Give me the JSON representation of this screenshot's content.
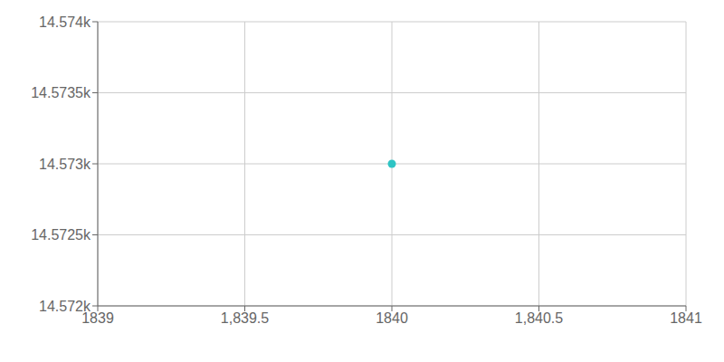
{
  "chart_data": {
    "type": "scatter",
    "x": [
      1840
    ],
    "values": [
      14573
    ],
    "color": "#2ec4c4",
    "xlim": [
      1839,
      1841
    ],
    "ylim": [
      14572,
      14574
    ],
    "xticks": [
      1839,
      {
        "value": 1839.5,
        "label": "1,839.5"
      },
      1840,
      {
        "value": 1840.5,
        "label": "1,840.5"
      },
      1841
    ],
    "yticks": [
      {
        "value": 14572,
        "label": "14.572k"
      },
      {
        "value": 14572.5,
        "label": "14.5725k"
      },
      {
        "value": 14573,
        "label": "14.573k"
      },
      {
        "value": 14573.5,
        "label": "14.5735k"
      },
      {
        "value": 14574,
        "label": "14.574k"
      }
    ],
    "grid": true
  }
}
